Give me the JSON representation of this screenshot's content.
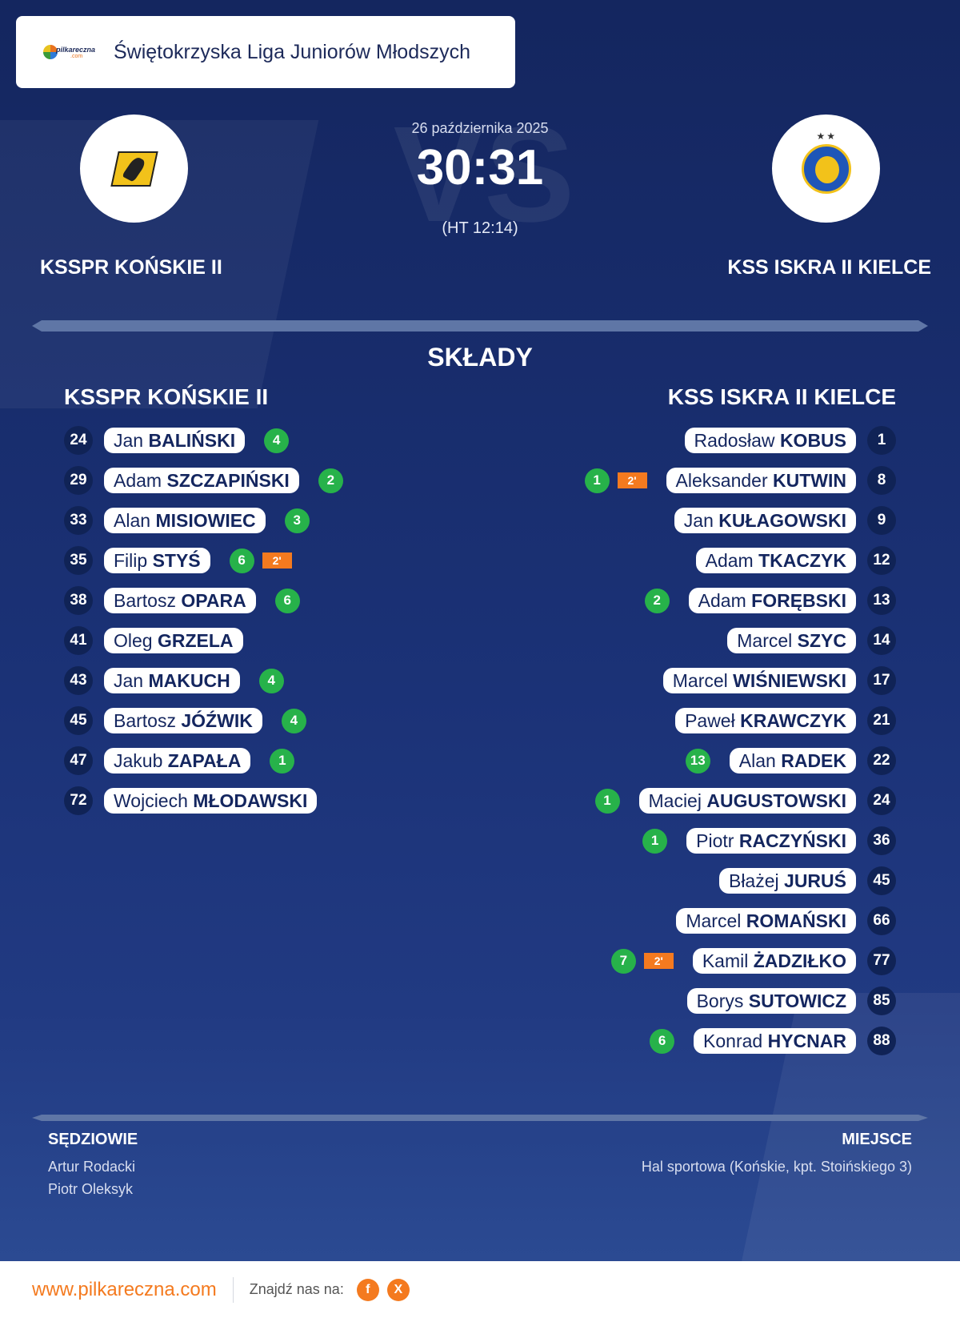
{
  "header": {
    "league_title": "Świętokrzyska Liga Juniorów Młodszych",
    "logo_text": "pilkareczna",
    "logo_subtext": ".com"
  },
  "match": {
    "date": "26 października 2025",
    "score": "30:31",
    "half_time": "(HT 12:14)",
    "vs_watermark": "VS"
  },
  "home": {
    "name": "KSSPR KOŃSKIE II",
    "players": [
      {
        "number": "24",
        "first": "Jan",
        "last": "BALIŃSKI",
        "goals": "4",
        "suspension": ""
      },
      {
        "number": "29",
        "first": "Adam",
        "last": "SZCZAPIŃSKI",
        "goals": "2",
        "suspension": ""
      },
      {
        "number": "33",
        "first": "Alan",
        "last": "MISIOWIEC",
        "goals": "3",
        "suspension": ""
      },
      {
        "number": "35",
        "first": "Filip",
        "last": "STYŚ",
        "goals": "6",
        "suspension": "2'"
      },
      {
        "number": "38",
        "first": "Bartosz",
        "last": "OPARA",
        "goals": "6",
        "suspension": ""
      },
      {
        "number": "41",
        "first": "Oleg",
        "last": "GRZELA",
        "goals": "",
        "suspension": ""
      },
      {
        "number": "43",
        "first": "Jan",
        "last": "MAKUCH",
        "goals": "4",
        "suspension": ""
      },
      {
        "number": "45",
        "first": "Bartosz",
        "last": "JÓŹWIK",
        "goals": "4",
        "suspension": ""
      },
      {
        "number": "47",
        "first": "Jakub",
        "last": "ZAPAŁA",
        "goals": "1",
        "suspension": ""
      },
      {
        "number": "72",
        "first": "Wojciech",
        "last": "MŁODAWSKI",
        "goals": "",
        "suspension": ""
      }
    ]
  },
  "away": {
    "name": "KSS ISKRA II KIELCE",
    "logo_stars": "★★",
    "players": [
      {
        "number": "1",
        "first": "Radosław",
        "last": "KOBUS",
        "goals": "",
        "suspension": ""
      },
      {
        "number": "8",
        "first": "Aleksander",
        "last": "KUTWIN",
        "goals": "1",
        "suspension": "2'"
      },
      {
        "number": "9",
        "first": "Jan",
        "last": "KUŁAGOWSKI",
        "goals": "",
        "suspension": ""
      },
      {
        "number": "12",
        "first": "Adam",
        "last": "TKACZYK",
        "goals": "",
        "suspension": ""
      },
      {
        "number": "13",
        "first": "Adam",
        "last": "FORĘBSKI",
        "goals": "2",
        "suspension": ""
      },
      {
        "number": "14",
        "first": "Marcel",
        "last": "SZYC",
        "goals": "",
        "suspension": ""
      },
      {
        "number": "17",
        "first": "Marcel",
        "last": "WIŚNIEWSKI",
        "goals": "",
        "suspension": ""
      },
      {
        "number": "21",
        "first": "Paweł",
        "last": "KRAWCZYK",
        "goals": "",
        "suspension": ""
      },
      {
        "number": "22",
        "first": "Alan",
        "last": "RADEK",
        "goals": "13",
        "suspension": ""
      },
      {
        "number": "24",
        "first": "Maciej",
        "last": "AUGUSTOWSKI",
        "goals": "1",
        "suspension": ""
      },
      {
        "number": "36",
        "first": "Piotr",
        "last": "RACZYŃSKI",
        "goals": "1",
        "suspension": ""
      },
      {
        "number": "45",
        "first": "Błażej",
        "last": "JURUŚ",
        "goals": "",
        "suspension": ""
      },
      {
        "number": "66",
        "first": "Marcel",
        "last": "ROMAŃSKI",
        "goals": "",
        "suspension": ""
      },
      {
        "number": "77",
        "first": "Kamil",
        "last": "ŻADZIŁKO",
        "goals": "7",
        "suspension": "2'"
      },
      {
        "number": "85",
        "first": "Borys",
        "last": "SUTOWICZ",
        "goals": "",
        "suspension": ""
      },
      {
        "number": "88",
        "first": "Konrad",
        "last": "HYCNAR",
        "goals": "6",
        "suspension": ""
      }
    ]
  },
  "lineups_title": "SKŁADY",
  "referees": {
    "title": "SĘDZIOWIE",
    "names": [
      "Artur Rodacki",
      "Piotr Oleksyk"
    ]
  },
  "venue": {
    "title": "MIEJSCE",
    "text": "Hal sportowa (Końskie, kpt. Stoińskiego 3)"
  },
  "footer": {
    "site": "www.pilkareczna.com",
    "find_us": "Znajdź nas na:",
    "facebook": "f",
    "x": "X"
  },
  "colors": {
    "background": "#1b3277",
    "goal_badge": "#27b24a",
    "suspension_badge": "#f47a1f",
    "accent": "#f47a1f"
  }
}
